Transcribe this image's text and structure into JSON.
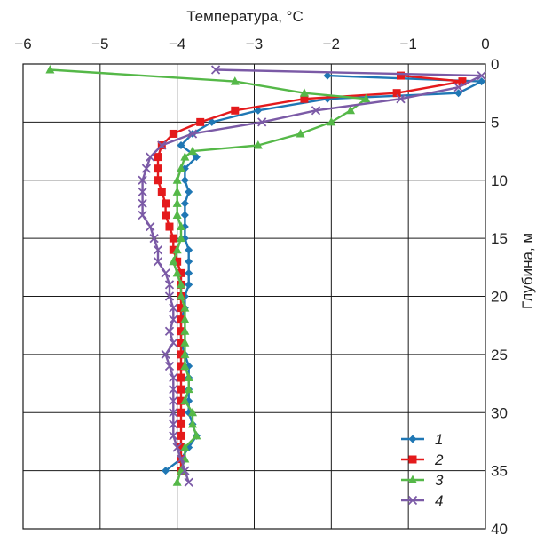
{
  "chart_data": {
    "type": "line",
    "xlabel": "Температура, °С",
    "ylabel": "Глубина, м",
    "xlim": [
      -6,
      0
    ],
    "ylim": [
      0,
      40
    ],
    "y_inverted": true,
    "x_axis_position": "top",
    "y_axis_position": "right",
    "x_ticks": [
      -6,
      -5,
      -4,
      -3,
      -2,
      -1,
      0
    ],
    "x_tick_labels": [
      "−6",
      "−5",
      "−4",
      "−3",
      "−2",
      "−1",
      "0"
    ],
    "y_ticks": [
      0,
      5,
      10,
      15,
      20,
      25,
      30,
      35,
      40
    ],
    "y_tick_labels": [
      "0",
      "5",
      "10",
      "15",
      "20",
      "25",
      "30",
      "35",
      "40"
    ],
    "grid": true,
    "legend_position": "bottom-right",
    "series": [
      {
        "name": "1",
        "color": "#1f77b4",
        "marker": "diamond",
        "points": [
          [
            -2.05,
            1
          ],
          [
            -0.05,
            1.5
          ],
          [
            -0.35,
            2.5
          ],
          [
            -2.05,
            3
          ],
          [
            -2.95,
            4
          ],
          [
            -3.55,
            5
          ],
          [
            -3.8,
            6
          ],
          [
            -3.95,
            7
          ],
          [
            -3.75,
            8
          ],
          [
            -3.9,
            9
          ],
          [
            -3.9,
            10
          ],
          [
            -3.85,
            11
          ],
          [
            -3.9,
            12
          ],
          [
            -3.9,
            13
          ],
          [
            -3.9,
            14
          ],
          [
            -3.9,
            15
          ],
          [
            -3.85,
            16
          ],
          [
            -3.85,
            17
          ],
          [
            -3.85,
            18
          ],
          [
            -3.85,
            19
          ],
          [
            -3.9,
            20
          ],
          [
            -3.9,
            21
          ],
          [
            -3.95,
            22
          ],
          [
            -3.95,
            23
          ],
          [
            -3.95,
            24
          ],
          [
            -3.9,
            25
          ],
          [
            -3.85,
            26
          ],
          [
            -3.85,
            27
          ],
          [
            -3.85,
            28
          ],
          [
            -3.85,
            29
          ],
          [
            -3.85,
            30
          ],
          [
            -3.8,
            31
          ],
          [
            -3.75,
            32
          ],
          [
            -3.85,
            33
          ],
          [
            -3.95,
            34
          ],
          [
            -4.15,
            35
          ]
        ]
      },
      {
        "name": "2",
        "color": "#e41a1c",
        "marker": "square",
        "points": [
          [
            -1.1,
            1
          ],
          [
            -0.3,
            1.5
          ],
          [
            -1.15,
            2.5
          ],
          [
            -2.35,
            3
          ],
          [
            -3.25,
            4
          ],
          [
            -3.7,
            5
          ],
          [
            -4.05,
            6
          ],
          [
            -4.2,
            7
          ],
          [
            -4.25,
            8
          ],
          [
            -4.25,
            9
          ],
          [
            -4.25,
            10
          ],
          [
            -4.2,
            11
          ],
          [
            -4.15,
            12
          ],
          [
            -4.15,
            13
          ],
          [
            -4.1,
            14
          ],
          [
            -4.05,
            15
          ],
          [
            -4.05,
            16
          ],
          [
            -4.0,
            17
          ],
          [
            -3.95,
            18
          ],
          [
            -3.95,
            19
          ],
          [
            -3.95,
            20
          ],
          [
            -3.95,
            21
          ],
          [
            -3.95,
            22
          ],
          [
            -3.95,
            23
          ],
          [
            -3.95,
            24
          ],
          [
            -3.95,
            25
          ],
          [
            -3.95,
            26
          ],
          [
            -3.95,
            27
          ],
          [
            -3.95,
            28
          ],
          [
            -3.95,
            29
          ],
          [
            -3.95,
            30
          ],
          [
            -3.95,
            31
          ],
          [
            -3.95,
            32
          ],
          [
            -3.95,
            33
          ],
          [
            -3.95,
            34
          ],
          [
            -3.95,
            35
          ]
        ]
      },
      {
        "name": "3",
        "color": "#55b848",
        "marker": "triangle",
        "points": [
          [
            -5.65,
            0.5
          ],
          [
            -3.25,
            1.5
          ],
          [
            -2.35,
            2.5
          ],
          [
            -1.55,
            3
          ],
          [
            -1.75,
            4
          ],
          [
            -2.0,
            5
          ],
          [
            -2.4,
            6
          ],
          [
            -2.95,
            7
          ],
          [
            -3.8,
            7.5
          ],
          [
            -3.9,
            8
          ],
          [
            -3.95,
            9
          ],
          [
            -4.0,
            10
          ],
          [
            -4.0,
            11
          ],
          [
            -4.0,
            12
          ],
          [
            -4.0,
            13
          ],
          [
            -3.95,
            14
          ],
          [
            -3.95,
            15
          ],
          [
            -4.0,
            16
          ],
          [
            -4.05,
            17
          ],
          [
            -4.0,
            18
          ],
          [
            -3.95,
            19
          ],
          [
            -3.95,
            20
          ],
          [
            -3.9,
            21
          ],
          [
            -3.9,
            22
          ],
          [
            -3.9,
            23
          ],
          [
            -3.9,
            24
          ],
          [
            -3.9,
            25
          ],
          [
            -3.9,
            26
          ],
          [
            -3.85,
            27
          ],
          [
            -3.85,
            28
          ],
          [
            -3.9,
            29
          ],
          [
            -3.8,
            30
          ],
          [
            -3.8,
            31
          ],
          [
            -3.75,
            32
          ],
          [
            -3.9,
            33
          ],
          [
            -3.9,
            34
          ],
          [
            -3.95,
            35
          ],
          [
            -4.0,
            36
          ]
        ]
      },
      {
        "name": "4",
        "color": "#7b5aa6",
        "marker": "x",
        "points": [
          [
            -3.5,
            0.5
          ],
          [
            -0.05,
            1
          ],
          [
            -0.35,
            2
          ],
          [
            -1.1,
            3
          ],
          [
            -2.2,
            4
          ],
          [
            -2.9,
            5
          ],
          [
            -3.8,
            6
          ],
          [
            -4.2,
            7
          ],
          [
            -4.35,
            8
          ],
          [
            -4.4,
            9
          ],
          [
            -4.45,
            10
          ],
          [
            -4.45,
            11
          ],
          [
            -4.45,
            12
          ],
          [
            -4.45,
            13
          ],
          [
            -4.35,
            14
          ],
          [
            -4.3,
            15
          ],
          [
            -4.25,
            16
          ],
          [
            -4.25,
            17
          ],
          [
            -4.15,
            18
          ],
          [
            -4.1,
            19
          ],
          [
            -4.1,
            20
          ],
          [
            -4.05,
            21
          ],
          [
            -4.05,
            22
          ],
          [
            -4.1,
            23
          ],
          [
            -4.05,
            24
          ],
          [
            -4.15,
            25
          ],
          [
            -4.1,
            26
          ],
          [
            -4.05,
            27
          ],
          [
            -4.05,
            28
          ],
          [
            -4.05,
            29
          ],
          [
            -4.05,
            30
          ],
          [
            -4.05,
            31
          ],
          [
            -4.05,
            32
          ],
          [
            -4.0,
            33
          ],
          [
            -3.95,
            34
          ],
          [
            -3.9,
            35
          ],
          [
            -3.85,
            36
          ]
        ]
      }
    ]
  }
}
